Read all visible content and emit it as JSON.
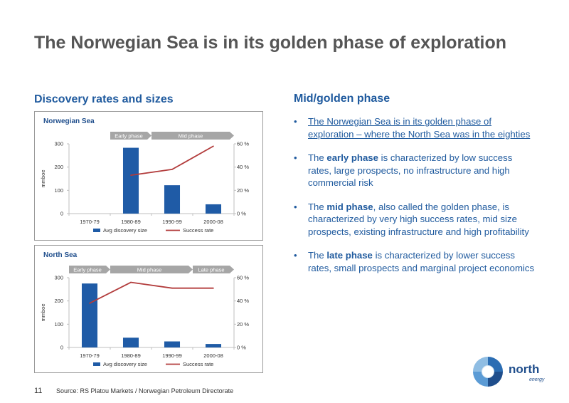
{
  "slide": {
    "title": "The Norwegian Sea is in its golden phase of exploration",
    "left_subtitle": "Discovery rates and sizes",
    "right_subtitle": "Mid/golden phase",
    "page_number": "11",
    "source": "Source: RS Platou Markets / Norwegian Petroleum Directorate",
    "logo": {
      "name": "north",
      "tagline": "energy",
      "icon": "aperture-logo-icon"
    },
    "colors": {
      "accent": "#1f5a9e",
      "bar": "#1f5ba6",
      "line": "#b23b3b",
      "phase": "#a6a6a6"
    },
    "bullets": [
      {
        "segments": [
          {
            "text": "The Norwegian Sea is in its golden phase of exploration – where the North Sea was in the eighties",
            "bold": false
          }
        ],
        "underline": true
      },
      {
        "segments": [
          {
            "text": "The ",
            "bold": false
          },
          {
            "text": "early phase",
            "bold": true
          },
          {
            "text": " is characterized by low success rates, large prospects, no infrastructure and high commercial risk",
            "bold": false
          }
        ],
        "underline": false
      },
      {
        "segments": [
          {
            "text": "The ",
            "bold": false
          },
          {
            "text": "mid phase",
            "bold": true
          },
          {
            "text": ", also called the golden phase, is characterized by very high success rates, mid size prospects, existing infrastructure and high profitability",
            "bold": false
          }
        ],
        "underline": false
      },
      {
        "segments": [
          {
            "text": "The ",
            "bold": false
          },
          {
            "text": "late phase",
            "bold": true
          },
          {
            "text": " is characterized by lower success rates, small prospects and marginal project economics",
            "bold": false
          }
        ],
        "underline": false
      }
    ]
  },
  "chart_data": [
    {
      "type": "bar",
      "title": "Norwegian Sea",
      "categories": [
        "1970-79",
        "1980-89",
        "1990-99",
        "2000-08"
      ],
      "ylabel": "mmboe",
      "ylim": [
        0,
        300
      ],
      "y_ticks": [
        "0",
        "100",
        "200",
        "300"
      ],
      "y2lim": [
        0,
        60
      ],
      "y2_ticks": [
        "0 %",
        "20 %",
        "40 %",
        "60 %"
      ],
      "phases": [
        {
          "label": "Early phase",
          "from": 1,
          "to": 1
        },
        {
          "label": "Mid phase",
          "from": 2,
          "to": 3
        }
      ],
      "series": [
        {
          "name": "Avg discovery size",
          "kind": "bar",
          "axis": "left",
          "values": [
            null,
            283,
            122,
            40
          ]
        },
        {
          "name": "Success rate",
          "kind": "line",
          "axis": "right",
          "values": [
            null,
            33,
            38,
            58
          ]
        }
      ],
      "legend": "bottom"
    },
    {
      "type": "bar",
      "title": "North Sea",
      "categories": [
        "1970-79",
        "1980-89",
        "1990-99",
        "2000-08"
      ],
      "ylabel": "mmboe",
      "ylim": [
        0,
        300
      ],
      "y_ticks": [
        "0",
        "100",
        "200",
        "300"
      ],
      "y2lim": [
        0,
        60
      ],
      "y2_ticks": [
        "0 %",
        "20 %",
        "40 %",
        "60 %"
      ],
      "phases": [
        {
          "label": "Early phase",
          "from": 0,
          "to": 0
        },
        {
          "label": "Mid phase",
          "from": 1,
          "to": 2
        },
        {
          "label": "Late phase",
          "from": 3,
          "to": 3
        }
      ],
      "series": [
        {
          "name": "Avg discovery size",
          "kind": "bar",
          "axis": "left",
          "values": [
            275,
            42,
            26,
            15
          ]
        },
        {
          "name": "Success rate",
          "kind": "line",
          "axis": "right",
          "values": [
            38,
            56,
            51,
            51
          ]
        }
      ],
      "legend": "bottom"
    }
  ]
}
